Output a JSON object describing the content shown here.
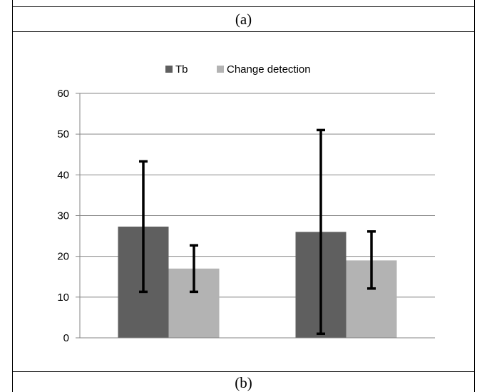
{
  "captions": {
    "top": "(a)",
    "bottom": "(b)"
  },
  "chart_data": {
    "type": "bar",
    "categories": [
      "",
      ""
    ],
    "series": [
      {
        "name": "Tb",
        "color": "#5f5f5f",
        "values": [
          27.3,
          26.0
        ],
        "error_low": [
          11.3,
          1.0
        ],
        "error_high": [
          43.3,
          51.0
        ]
      },
      {
        "name": "Change detection",
        "color": "#b3b3b3",
        "values": [
          17.0,
          19.0
        ],
        "error_low": [
          11.3,
          12.1
        ],
        "error_high": [
          22.7,
          26.1
        ]
      }
    ],
    "title": "",
    "xlabel": "",
    "ylabel": "",
    "ylim": [
      0,
      60
    ],
    "yticks": [
      0,
      10,
      20,
      30,
      40,
      50,
      60
    ],
    "grid": true,
    "legend_position": "top"
  }
}
